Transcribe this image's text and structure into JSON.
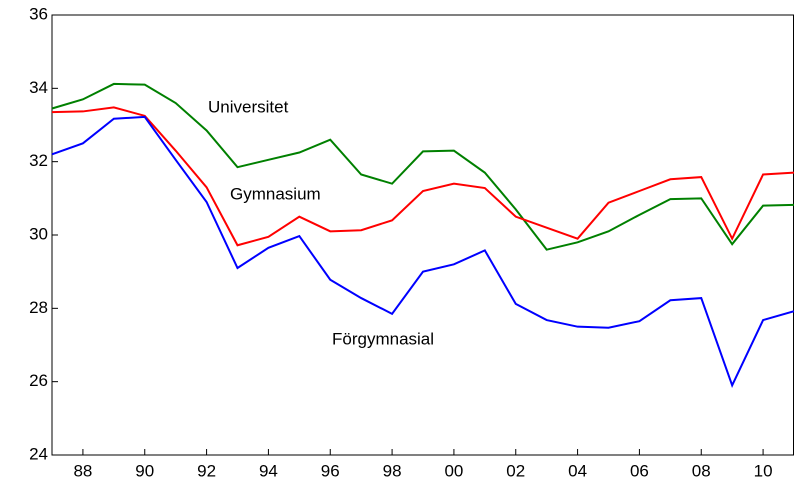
{
  "chart_data": {
    "type": "line",
    "x": [
      1987,
      1988,
      1989,
      1990,
      1991,
      1992,
      1993,
      1994,
      1995,
      1996,
      1997,
      1998,
      1999,
      2000,
      2001,
      2002,
      2003,
      2004,
      2005,
      2006,
      2007,
      2008,
      2009,
      2010,
      2011
    ],
    "series": [
      {
        "name": "Universitet",
        "color": "#008000",
        "values": [
          33.45,
          33.7,
          34.12,
          34.1,
          33.6,
          32.85,
          31.85,
          32.05,
          32.25,
          32.6,
          31.65,
          31.4,
          32.28,
          32.3,
          31.7,
          30.7,
          29.6,
          29.8,
          30.1,
          30.55,
          30.98,
          31.0,
          29.75,
          30.8,
          30.82
        ]
      },
      {
        "name": "Gymnasium",
        "color": "#ff0000",
        "values": [
          33.35,
          33.37,
          33.48,
          33.25,
          32.3,
          31.3,
          29.72,
          29.95,
          30.5,
          30.1,
          30.13,
          30.4,
          31.2,
          31.4,
          31.28,
          30.5,
          30.2,
          29.9,
          30.88,
          31.2,
          31.52,
          31.58,
          29.9,
          31.65,
          31.7
        ]
      },
      {
        "name": "Förgymnasial",
        "color": "#0000ff",
        "values": [
          32.2,
          32.5,
          33.17,
          33.22,
          32.05,
          30.9,
          29.1,
          29.65,
          29.97,
          28.78,
          28.28,
          27.85,
          29.0,
          29.2,
          29.58,
          28.12,
          27.68,
          27.5,
          27.47,
          27.65,
          28.22,
          28.28,
          25.9,
          27.68,
          27.92
        ]
      }
    ],
    "xlim": [
      1987,
      2011
    ],
    "xticks": [
      {
        "value": 1988,
        "label": "88"
      },
      {
        "value": 1990,
        "label": "90"
      },
      {
        "value": 1992,
        "label": "92"
      },
      {
        "value": 1994,
        "label": "94"
      },
      {
        "value": 1996,
        "label": "96"
      },
      {
        "value": 1998,
        "label": "98"
      },
      {
        "value": 2000,
        "label": "00"
      },
      {
        "value": 2002,
        "label": "02"
      },
      {
        "value": 2004,
        "label": "04"
      },
      {
        "value": 2006,
        "label": "06"
      },
      {
        "value": 2008,
        "label": "08"
      },
      {
        "value": 2010,
        "label": "10"
      }
    ],
    "ylim": [
      24,
      36
    ],
    "yticks": [
      24,
      26,
      28,
      30,
      32,
      34,
      36
    ],
    "grid": false
  }
}
